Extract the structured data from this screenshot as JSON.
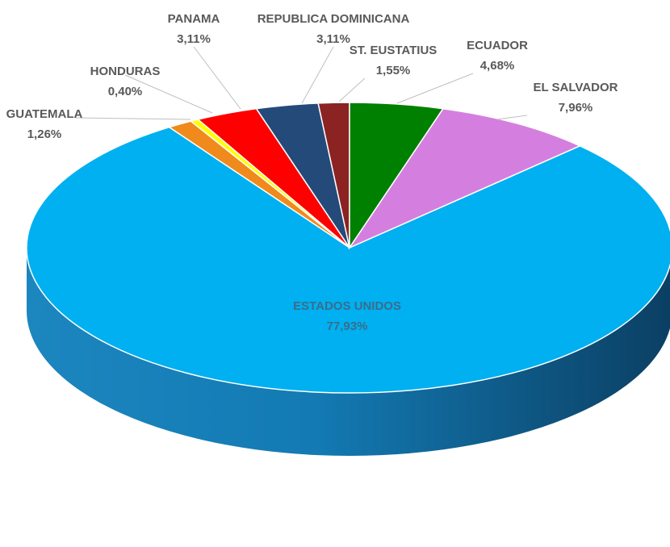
{
  "chart_data": {
    "type": "pie",
    "title": "",
    "slices": [
      {
        "name": "ESTADOS UNIDOS",
        "label": "77,93%",
        "value": 77.93,
        "color": "#00b0f0",
        "side_color": "#0a6e9c"
      },
      {
        "name": "GUATEMALA",
        "label": "1,26%",
        "value": 1.26,
        "color": "#f08a1c",
        "side_color": "#b3620f"
      },
      {
        "name": "HONDURAS",
        "label": "0,40%",
        "value": 0.4,
        "color": "#ffff00",
        "side_color": "#b3b300"
      },
      {
        "name": "PANAMA",
        "label": "3,11%",
        "value": 3.11,
        "color": "#ff0000",
        "side_color": "#a80000"
      },
      {
        "name": "REPUBLICA DOMINICANA",
        "label": "3,11%",
        "value": 3.11,
        "color": "#244a7a",
        "side_color": "#17304f"
      },
      {
        "name": "ST. EUSTATIUS",
        "label": "1,55%",
        "value": 1.55,
        "color": "#8b2323",
        "side_color": "#5a1616"
      },
      {
        "name": "ECUADOR",
        "label": "4,68%",
        "value": 4.68,
        "color": "#008000",
        "side_color": "#005200"
      },
      {
        "name": "EL SALVADOR",
        "label": "7,96%",
        "value": 7.96,
        "color": "#d47fe0",
        "side_color": "#9a55a6"
      }
    ],
    "legend": "none",
    "style": "3d-pie"
  }
}
